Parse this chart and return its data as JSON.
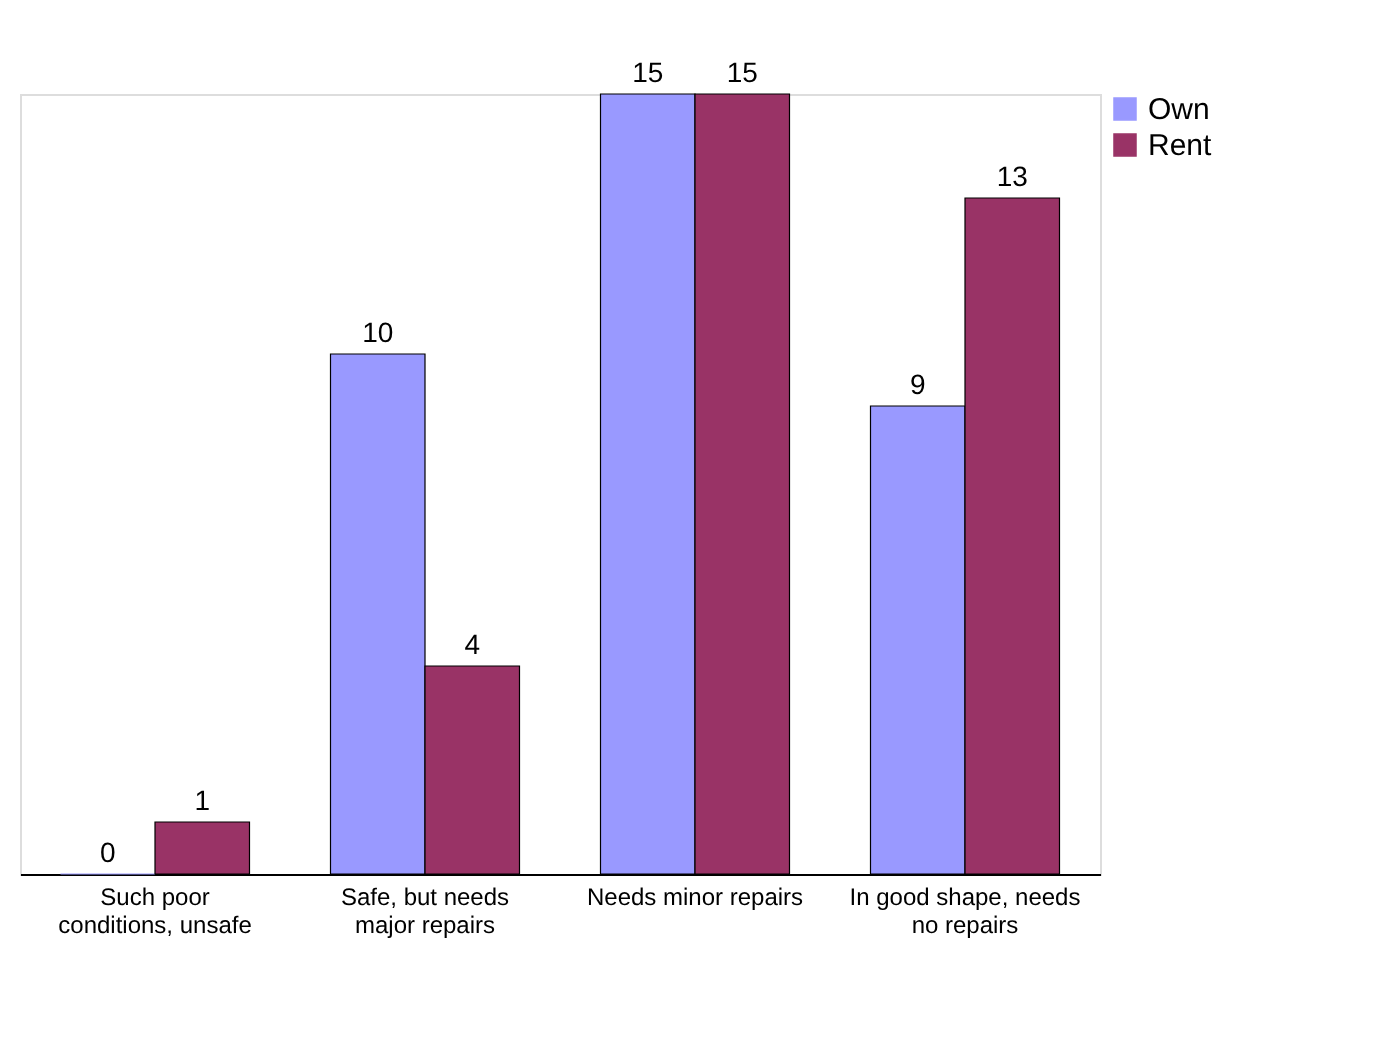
{
  "chart_data": {
    "type": "bar",
    "categories": [
      "Such poor conditions, unsafe",
      "Safe, but needs major repairs",
      "Needs minor repairs",
      "In good shape, needs no repairs"
    ],
    "series": [
      {
        "name": "Own",
        "color": "#9999ff",
        "values": [
          0,
          10,
          15,
          9
        ]
      },
      {
        "name": "Rent",
        "color": "#993366",
        "values": [
          1,
          4,
          15,
          13
        ]
      }
    ],
    "data_labels": true,
    "legend": "right",
    "grid": false
  }
}
